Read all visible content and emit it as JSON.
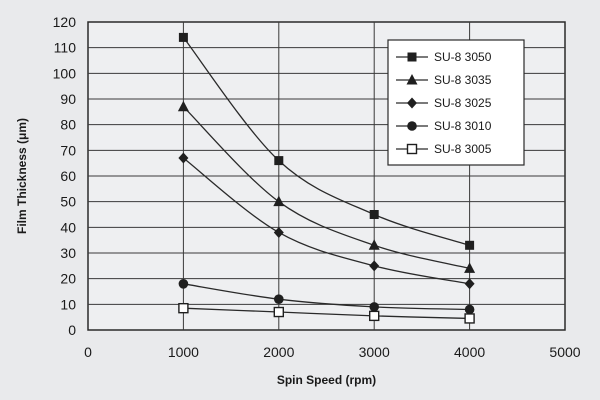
{
  "chart_data": {
    "type": "line",
    "xlabel": "Spin Speed (rpm)",
    "ylabel": "Film Thickness (μm)",
    "xlim": [
      0,
      5000
    ],
    "ylim": [
      0,
      120
    ],
    "xticks": [
      0,
      1000,
      2000,
      3000,
      4000,
      5000
    ],
    "yticks": [
      0,
      10,
      20,
      30,
      40,
      50,
      60,
      70,
      80,
      90,
      100,
      110,
      120
    ],
    "grid": true,
    "legend_position": "top-right",
    "x": [
      1000,
      2000,
      3000,
      4000
    ],
    "series": [
      {
        "name": "SU-8 3050",
        "marker": "square",
        "values": [
          114,
          66,
          45,
          33
        ]
      },
      {
        "name": "SU-8 3035",
        "marker": "triangle",
        "values": [
          87,
          50,
          33,
          24
        ]
      },
      {
        "name": "SU-8 3025",
        "marker": "diamond",
        "values": [
          67,
          38,
          25,
          18
        ]
      },
      {
        "name": "SU-8 3010",
        "marker": "circle",
        "values": [
          18,
          12,
          9,
          8
        ]
      },
      {
        "name": "SU-8 3005",
        "marker": "open-square",
        "values": [
          8.5,
          7,
          5.5,
          4.5
        ]
      }
    ]
  }
}
